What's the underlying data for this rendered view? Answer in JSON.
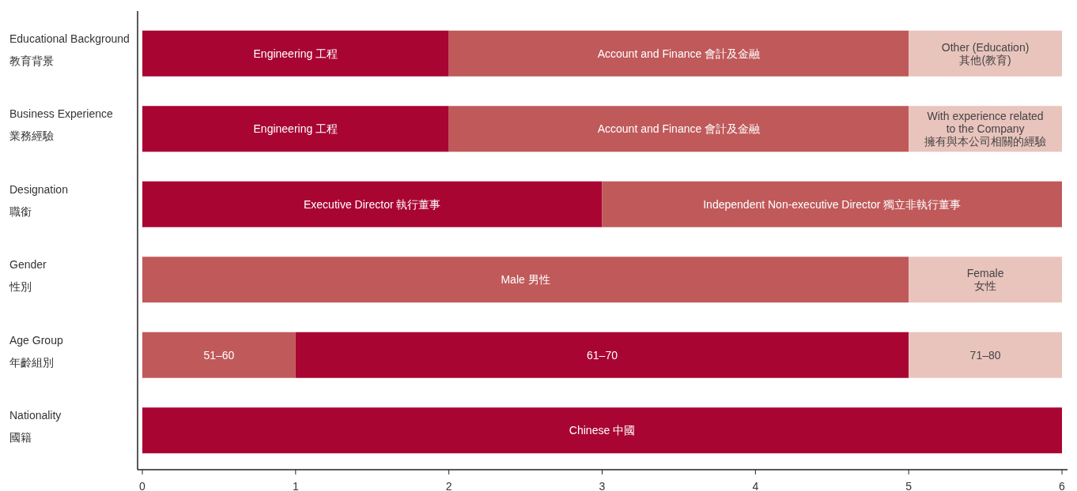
{
  "chart_data": {
    "type": "bar",
    "orientation": "horizontal",
    "stacked": true,
    "categories": [
      "Educational Background\n教育背景",
      "Business Experience\n業務經驗",
      "Designation\n職銜",
      "Gender\n性別",
      "Age Group\n年齡組別",
      "Nationality\n國籍"
    ],
    "series": [
      {
        "values": [
          2,
          2,
          3,
          5,
          1,
          6
        ],
        "colors": [
          "#a90533",
          "#a90533",
          "#a90533",
          "#c0595a",
          "#c0595a",
          "#a90533"
        ],
        "value_labels": [
          "Engineering 工程",
          "Engineering 工程",
          "Executive Director 執行董事",
          "Male 男性",
          "51–60",
          "Chinese 中國"
        ]
      },
      {
        "values": [
          3,
          3,
          3,
          1,
          4,
          null
        ],
        "colors": [
          "#c0595a",
          "#c0595a",
          "#c0595a",
          "#e9c4bd",
          "#a90533",
          null
        ],
        "value_labels": [
          "Account and Finance 會計及金融",
          "Account and Finance 會計及金融",
          "Independent Non-executive Director 獨立非執行董事",
          "Female\n女性",
          "61–70",
          null
        ]
      },
      {
        "values": [
          1,
          1,
          null,
          null,
          1,
          null
        ],
        "colors": [
          "#e9c4bd",
          "#e9c4bd",
          null,
          null,
          "#e9c4bd",
          null
        ],
        "value_labels": [
          "Other (Education)\n其他(教育)",
          "With experience related\nto the Company\n擁有與本公司相關的經驗",
          null,
          null,
          "71–80",
          null
        ]
      }
    ],
    "xlim": [
      0,
      6
    ],
    "xticks": [
      0,
      1,
      2,
      3,
      4,
      5,
      6
    ]
  }
}
